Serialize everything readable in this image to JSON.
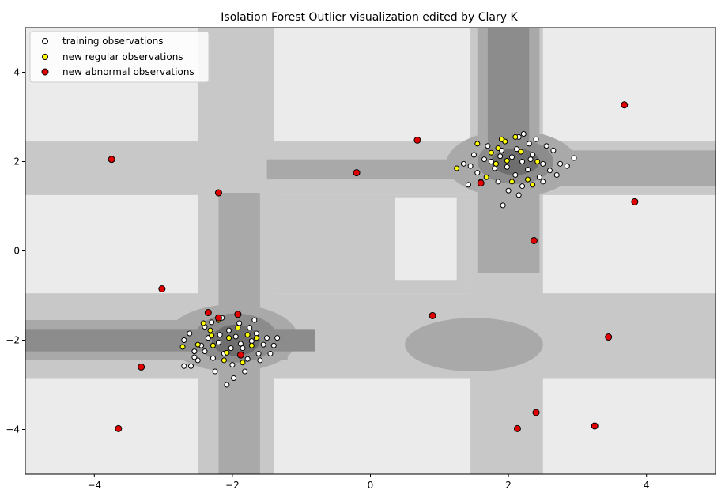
{
  "chart_data": {
    "type": "scatter",
    "title": "Isolation Forest Outlier visualization edited by Clary K",
    "xlabel": "",
    "ylabel": "",
    "xlim": [
      -5,
      5
    ],
    "ylim": [
      -5,
      5
    ],
    "x_ticks": [
      -4,
      -2,
      0,
      2,
      4
    ],
    "y_ticks": [
      -4,
      -2,
      0,
      2,
      4
    ],
    "tick_labels_x": [
      "−4",
      "−2",
      "0",
      "2",
      "4"
    ],
    "tick_labels_y": [
      "−4",
      "−2",
      "0",
      "2",
      "4"
    ],
    "grid": false,
    "legend_position": "top-left",
    "background": "decision-function contour in shades of gray (light far from clusters, dark at clusters)",
    "colors": {
      "level1": "#ebebeb",
      "level2": "#c8c8c8",
      "level3": "#a9a9a9",
      "level4": "#8c8c8c",
      "level5": "#6e6e6e",
      "training": "#ffffff",
      "regular": "#ffff00",
      "abnormal": "#e00000",
      "edge": "#000000"
    },
    "series": [
      {
        "name": "training observations",
        "color": "white",
        "points": [
          [
            -2.05,
            -1.78
          ],
          [
            -1.95,
            -1.92
          ],
          [
            -2.2,
            -2.05
          ],
          [
            -1.85,
            -2.18
          ],
          [
            -2.35,
            -1.95
          ],
          [
            -1.72,
            -2.02
          ],
          [
            -2.12,
            -2.3
          ],
          [
            -1.9,
            -1.62
          ],
          [
            -2.45,
            -2.12
          ],
          [
            -1.65,
            -1.85
          ],
          [
            -2.28,
            -2.4
          ],
          [
            -1.78,
            -2.42
          ],
          [
            -2.55,
            -2.25
          ],
          [
            -1.55,
            -2.1
          ],
          [
            -2.0,
            -2.55
          ],
          [
            -2.4,
            -1.7
          ],
          [
            -1.68,
            -1.55
          ],
          [
            -2.6,
            -2.58
          ],
          [
            -1.45,
            -2.3
          ],
          [
            -2.15,
            -1.5
          ],
          [
            -1.82,
            -2.7
          ],
          [
            -2.5,
            -2.45
          ],
          [
            -2.3,
            -1.6
          ],
          [
            -1.6,
            -2.45
          ],
          [
            -2.7,
            -2.0
          ],
          [
            -1.98,
            -2.85
          ],
          [
            -2.25,
            -2.7
          ],
          [
            -1.5,
            -1.95
          ],
          [
            -2.08,
            -3.0
          ],
          [
            -1.4,
            -2.12
          ],
          [
            -2.62,
            -1.85
          ],
          [
            -1.88,
            -2.08
          ],
          [
            -2.18,
            -1.88
          ],
          [
            -2.02,
            -2.18
          ],
          [
            -1.75,
            -1.72
          ],
          [
            -2.4,
            -2.25
          ],
          [
            -2.7,
            -2.58
          ],
          [
            -1.62,
            -2.3
          ],
          [
            -1.35,
            -1.95
          ],
          [
            -2.55,
            -2.38
          ],
          [
            2.05,
            2.1
          ],
          [
            1.9,
            2.25
          ],
          [
            2.2,
            2.0
          ],
          [
            1.8,
            1.85
          ],
          [
            2.35,
            2.15
          ],
          [
            2.1,
            1.7
          ],
          [
            1.65,
            2.05
          ],
          [
            2.5,
            1.95
          ],
          [
            1.95,
            2.45
          ],
          [
            2.3,
            2.4
          ],
          [
            1.55,
            1.75
          ],
          [
            2.6,
            1.8
          ],
          [
            2.15,
            2.55
          ],
          [
            1.7,
            2.35
          ],
          [
            2.45,
            1.65
          ],
          [
            1.85,
            1.55
          ],
          [
            2.65,
            2.25
          ],
          [
            1.5,
            2.15
          ],
          [
            2.75,
            1.95
          ],
          [
            2.0,
            1.35
          ],
          [
            1.45,
            1.9
          ],
          [
            2.4,
            2.5
          ],
          [
            2.2,
            1.45
          ],
          [
            1.6,
            1.55
          ],
          [
            2.55,
            2.35
          ],
          [
            1.75,
            2.0
          ],
          [
            2.85,
            1.9
          ],
          [
            2.15,
            1.25
          ],
          [
            1.35,
            1.95
          ],
          [
            1.92,
            1.02
          ],
          [
            2.95,
            2.08
          ],
          [
            2.5,
            1.55
          ],
          [
            2.28,
            1.82
          ],
          [
            1.98,
            1.88
          ],
          [
            2.12,
            2.28
          ],
          [
            1.88,
            2.12
          ],
          [
            2.32,
            2.05
          ],
          [
            1.42,
            1.48
          ],
          [
            2.7,
            1.7
          ],
          [
            2.22,
            2.62
          ]
        ]
      },
      {
        "name": "new regular observations",
        "color": "yellow",
        "points": [
          [
            -2.72,
            -2.15
          ],
          [
            -2.42,
            -1.62
          ],
          [
            -2.32,
            -1.78
          ],
          [
            -2.2,
            -1.55
          ],
          [
            -2.05,
            -1.95
          ],
          [
            -1.92,
            -1.72
          ],
          [
            -2.3,
            -1.9
          ],
          [
            -1.72,
            -2.12
          ],
          [
            -2.12,
            -2.45
          ],
          [
            -2.28,
            -2.12
          ],
          [
            -1.85,
            -2.5
          ],
          [
            -1.78,
            -1.88
          ],
          [
            -2.5,
            -2.1
          ],
          [
            -2.08,
            -2.28
          ],
          [
            -1.65,
            -1.95
          ],
          [
            1.25,
            1.85
          ],
          [
            1.55,
            2.4
          ],
          [
            1.75,
            2.2
          ],
          [
            1.85,
            2.3
          ],
          [
            1.95,
            2.45
          ],
          [
            2.1,
            2.55
          ],
          [
            1.82,
            1.95
          ],
          [
            2.05,
            1.55
          ],
          [
            2.28,
            1.6
          ],
          [
            2.42,
            2.0
          ],
          [
            1.68,
            1.65
          ],
          [
            2.18,
            2.22
          ],
          [
            1.98,
            2.02
          ],
          [
            2.35,
            1.48
          ],
          [
            1.9,
            2.5
          ]
        ]
      },
      {
        "name": "new abnormal observations",
        "color": "red",
        "points": [
          [
            -3.75,
            2.05
          ],
          [
            -2.2,
            1.3
          ],
          [
            -0.2,
            1.75
          ],
          [
            0.68,
            2.48
          ],
          [
            3.68,
            3.27
          ],
          [
            3.83,
            1.1
          ],
          [
            -3.02,
            -0.85
          ],
          [
            2.37,
            0.23
          ],
          [
            0.9,
            -1.45
          ],
          [
            3.45,
            -1.93
          ],
          [
            -3.32,
            -2.6
          ],
          [
            -3.65,
            -3.98
          ],
          [
            2.13,
            -3.98
          ],
          [
            2.4,
            -3.62
          ],
          [
            3.25,
            -3.92
          ],
          [
            -2.35,
            -1.38
          ],
          [
            -2.2,
            -1.5
          ],
          [
            -1.92,
            -1.42
          ],
          [
            -1.88,
            -2.33
          ],
          [
            1.6,
            1.52
          ]
        ]
      }
    ]
  }
}
